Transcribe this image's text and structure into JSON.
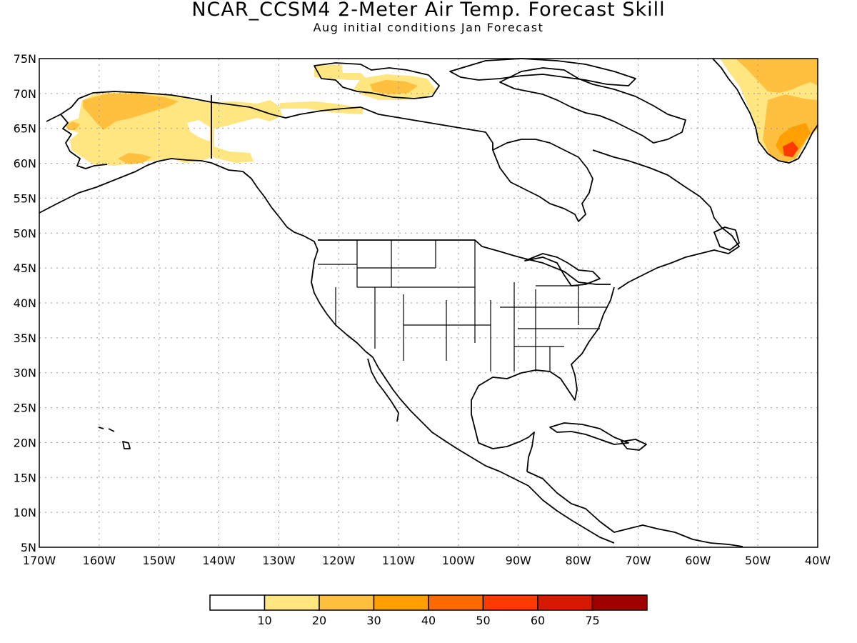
{
  "title": "NCAR_CCSM4 2-Meter Air Temp. Forecast Skill",
  "subtitle": "Aug initial conditions  Jan Forecast",
  "latitude_labels": [
    "75N",
    "70N",
    "65N",
    "60N",
    "55N",
    "50N",
    "45N",
    "40N",
    "35N",
    "30N",
    "25N",
    "20N",
    "15N",
    "10N",
    "5N"
  ],
  "longitude_labels": [
    "170W",
    "160W",
    "150W",
    "140W",
    "130W",
    "120W",
    "110W",
    "100W",
    "90W",
    "80W",
    "70W",
    "60W",
    "50W",
    "40W"
  ],
  "colorbar": {
    "labels": [
      "10",
      "20",
      "30",
      "40",
      "50",
      "60",
      "75"
    ],
    "colors": [
      "#ffffff",
      "#ffe680",
      "#ffc040",
      "#ffa000",
      "#ff6a00",
      "#ff3a00",
      "#d81800",
      "#a00000"
    ]
  },
  "colors": {
    "skill_10_20": "#ffe680",
    "skill_20_30": "#ffc040",
    "skill_30_40": "#ffa000",
    "skill_50_60": "#ff3a00",
    "grid": "#999999"
  }
}
